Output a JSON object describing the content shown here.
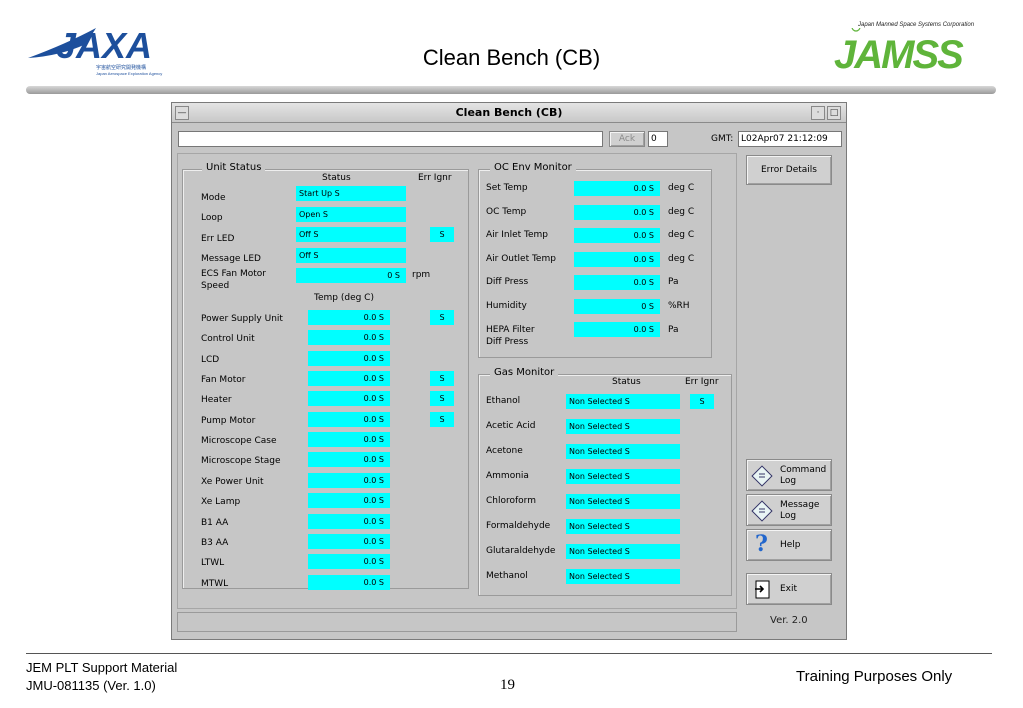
{
  "slide": {
    "title": "Clean Bench (CB)",
    "jaxa_sub1": "宇宙航空研究開発機構",
    "jaxa_sub2": "Japan Aerospace Exploration Agency",
    "jamss_tagline": "Japan Manned Space Systems Corporation",
    "footer_line1": "JEM PLT Support Material",
    "footer_line2": "JMU-081135 (Ver. 1.0)",
    "page_number": "19",
    "footer_right": "Training Purposes Only"
  },
  "window": {
    "title": "Clean Bench (CB)",
    "ack_label": "Ack",
    "ack_count": "0",
    "gmt_label": "GMT:",
    "gmt_value": "L02Apr07 21:12:09",
    "version": "Ver. 2.0"
  },
  "unit_status": {
    "title": "Unit Status",
    "col_status": "Status",
    "col_err": "Err Ignr",
    "rows": [
      {
        "label": "Mode",
        "value": "Start Up S"
      },
      {
        "label": "Loop",
        "value": "Open S"
      },
      {
        "label": "Err LED",
        "value": "Off S",
        "err": "S"
      },
      {
        "label": "Message LED",
        "value": "Off S"
      }
    ],
    "fan_label1": "ECS Fan Motor",
    "fan_label2": "Speed",
    "fan_value": "0 S",
    "fan_unit": "rpm",
    "temp_header": "Temp (deg C)",
    "temps": [
      {
        "label": "Power Supply Unit",
        "value": "0.0 S",
        "err": "S"
      },
      {
        "label": "Control Unit",
        "value": "0.0 S"
      },
      {
        "label": "LCD",
        "value": "0.0 S"
      },
      {
        "label": "Fan Motor",
        "value": "0.0 S",
        "err": "S"
      },
      {
        "label": "Heater",
        "value": "0.0 S",
        "err": "S"
      },
      {
        "label": "Pump Motor",
        "value": "0.0 S",
        "err": "S"
      },
      {
        "label": "Microscope Case",
        "value": "0.0 S"
      },
      {
        "label": "Microscope Stage",
        "value": "0.0 S"
      },
      {
        "label": "Xe Power Unit",
        "value": "0.0 S"
      },
      {
        "label": "Xe Lamp",
        "value": "0.0 S"
      },
      {
        "label": "B1 AA",
        "value": "0.0 S"
      },
      {
        "label": "B3 AA",
        "value": "0.0 S"
      },
      {
        "label": "LTWL",
        "value": "0.0 S"
      },
      {
        "label": "MTWL",
        "value": "0.0 S"
      }
    ]
  },
  "oc_env": {
    "title": "OC Env Monitor",
    "rows": [
      {
        "label": "Set Temp",
        "value": "0.0 S",
        "unit": "deg C"
      },
      {
        "label": "OC Temp",
        "value": "0.0 S",
        "unit": "deg C"
      },
      {
        "label": "Air Inlet Temp",
        "value": "0.0 S",
        "unit": "deg C"
      },
      {
        "label": "Air Outlet Temp",
        "value": "0.0 S",
        "unit": "deg C"
      },
      {
        "label": "Diff Press",
        "value": "0.0 S",
        "unit": "Pa"
      },
      {
        "label": "Humidity",
        "value": "0 S",
        "unit": "%RH"
      }
    ],
    "hepa_label1": "HEPA Filter",
    "hepa_label2": "Diff Press",
    "hepa_value": "0.0 S",
    "hepa_unit": "Pa"
  },
  "gas": {
    "title": "Gas Monitor",
    "col_status": "Status",
    "col_err": "Err Ignr",
    "rows": [
      {
        "label": "Ethanol",
        "value": "Non Selected S",
        "err": "S"
      },
      {
        "label": "Acetic Acid",
        "value": "Non Selected S"
      },
      {
        "label": "Acetone",
        "value": "Non Selected S"
      },
      {
        "label": "Ammonia",
        "value": "Non Selected S"
      },
      {
        "label": "Chloroform",
        "value": "Non Selected S"
      },
      {
        "label": "Formaldehyde",
        "value": "Non Selected S"
      },
      {
        "label": "Glutaraldehyde",
        "value": "Non Selected S"
      },
      {
        "label": "Methanol",
        "value": "Non Selected S"
      }
    ]
  },
  "side_buttons": {
    "error_details": "Error Details",
    "command_log_1": "Command",
    "command_log_2": "Log",
    "message_log_1": "Message",
    "message_log_2": "Log",
    "help": "Help",
    "exit": "Exit"
  },
  "colors": {
    "field_cyan": "#00ffff",
    "window_gray": "#c6c6c6",
    "jaxa_blue": "#1d4f9c",
    "jamss_green": "#5fb43a"
  }
}
